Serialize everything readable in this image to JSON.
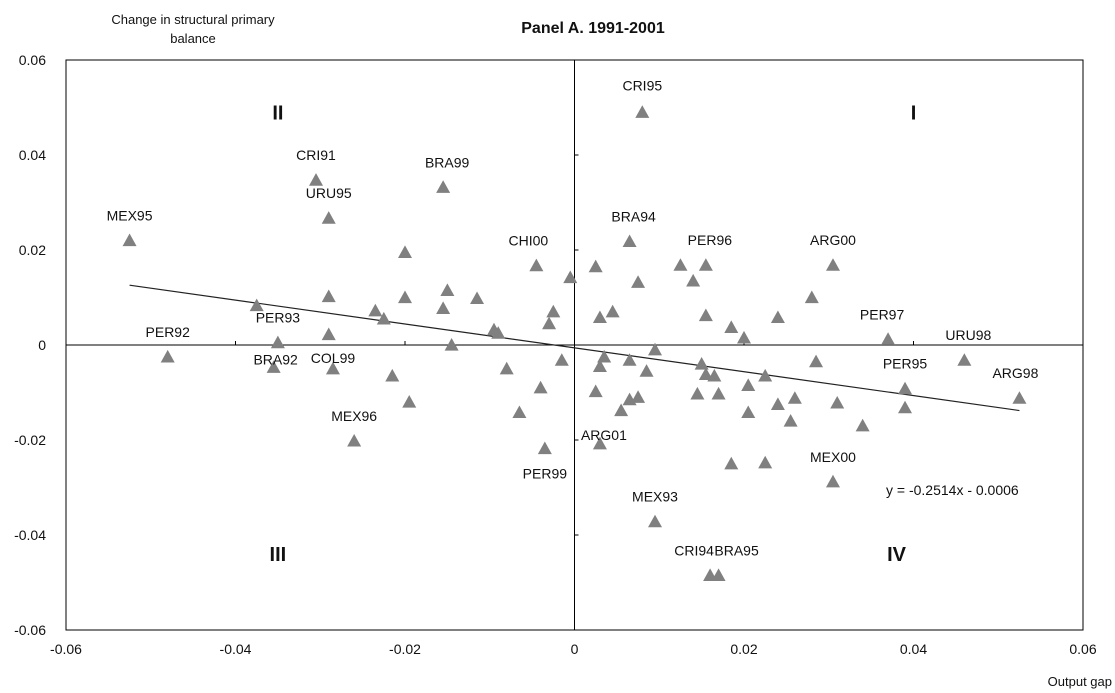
{
  "chart_data": {
    "type": "scatter",
    "title": "Panel A. 1991-2001",
    "xlabel": "Output gap",
    "ylabel": [
      "Change in structural primary",
      "balance"
    ],
    "xlim": [
      -0.06,
      0.06
    ],
    "ylim": [
      -0.06,
      0.06
    ],
    "x_ticks": [
      "-0.06",
      "-0.04",
      "-0.02",
      "0",
      "0.02",
      "0.04",
      "0.06"
    ],
    "y_ticks": [
      "-0.06",
      "-0.04",
      "-0.02",
      "0",
      "0.02",
      "0.04",
      "0.06"
    ],
    "grid": false,
    "marker": "triangle",
    "marker_color": "#808080",
    "trendline": {
      "equation": "y = -0.2514x - 0.0006",
      "slope": -0.2514,
      "intercept": -0.0006,
      "x_range": [
        -0.0525,
        0.0525
      ]
    },
    "quadrant_labels": [
      {
        "text": "I",
        "x": 0.04,
        "y": 0.049
      },
      {
        "text": "II",
        "x": -0.035,
        "y": 0.049
      },
      {
        "text": "III",
        "x": -0.035,
        "y": -0.044
      },
      {
        "text": "IV",
        "x": 0.038,
        "y": -0.044
      }
    ],
    "labeled_points": [
      {
        "label": "CRI95",
        "x": 0.008,
        "y": 0.049,
        "dx": 0,
        "dy": -22
      },
      {
        "label": "CRI91",
        "x": -0.0305,
        "y": 0.0347,
        "dx": 0,
        "dy": -20
      },
      {
        "label": "BRA99",
        "x": -0.0155,
        "y": 0.0332,
        "dx": 4,
        "dy": -20
      },
      {
        "label": "URU95",
        "x": -0.029,
        "y": 0.0267,
        "dx": 0,
        "dy": -20
      },
      {
        "label": "MEX95",
        "x": -0.0525,
        "y": 0.022,
        "dx": 0,
        "dy": -20
      },
      {
        "label": "BRA94",
        "x": 0.0065,
        "y": 0.0218,
        "dx": 4,
        "dy": -20
      },
      {
        "label": "CHI00",
        "x": -0.0045,
        "y": 0.0167,
        "dx": -8,
        "dy": -20
      },
      {
        "label": "PER96",
        "x": 0.0155,
        "y": 0.0168,
        "dx": 4,
        "dy": -20
      },
      {
        "label": "ARG00",
        "x": 0.0305,
        "y": 0.0168,
        "dx": 0,
        "dy": -20
      },
      {
        "label": "PER97",
        "x": 0.037,
        "y": 0.0012,
        "dx": -6,
        "dy": -20
      },
      {
        "label": "URU98",
        "x": 0.046,
        "y": -0.0032,
        "dx": 4,
        "dy": -20
      },
      {
        "label": "PER92",
        "x": -0.048,
        "y": -0.0025,
        "dx": 0,
        "dy": -20
      },
      {
        "label": "PER93",
        "x": -0.035,
        "y": 0.0005,
        "dx": 0,
        "dy": -20
      },
      {
        "label": "BRA92",
        "x": -0.0355,
        "y": -0.0047,
        "dx": 2,
        "dy": -3
      },
      {
        "label": "COL99",
        "x": -0.0285,
        "y": -0.005,
        "dx": 0,
        "dy": -6
      },
      {
        "label": "PER95",
        "x": 0.039,
        "y": -0.0092,
        "dx": 0,
        "dy": -20
      },
      {
        "label": "ARG98",
        "x": 0.0525,
        "y": -0.0112,
        "dx": -4,
        "dy": -20
      },
      {
        "label": "MEX96",
        "x": -0.026,
        "y": -0.0202,
        "dx": 0,
        "dy": -20
      },
      {
        "label": "ARG01",
        "x": 0.003,
        "y": -0.0208,
        "dx": 4,
        "dy": -4
      },
      {
        "label": "PER99",
        "x": -0.0035,
        "y": -0.0218,
        "dx": 0,
        "dy": 30
      },
      {
        "label": "MEX00",
        "x": 0.0305,
        "y": -0.0288,
        "dx": 0,
        "dy": -20
      },
      {
        "label": "MEX93",
        "x": 0.0095,
        "y": -0.0372,
        "dx": 0,
        "dy": -20
      },
      {
        "label": "CRI94",
        "x": 0.016,
        "y": -0.0485,
        "dx": -16,
        "dy": -20
      },
      {
        "label": "BRA95",
        "x": 0.017,
        "y": -0.0485,
        "dx": 18,
        "dy": -20
      }
    ],
    "other_points": [
      [
        -0.02,
        0.0195
      ],
      [
        -0.015,
        0.0115
      ],
      [
        -0.0155,
        0.0077
      ],
      [
        -0.0115,
        0.0098
      ],
      [
        -0.02,
        0.01
      ],
      [
        -0.029,
        0.0102
      ],
      [
        -0.0375,
        0.0083
      ],
      [
        -0.0235,
        0.0072
      ],
      [
        -0.0225,
        0.0055
      ],
      [
        -0.0095,
        0.0032
      ],
      [
        -0.029,
        0.0022
      ],
      [
        -0.0145,
        0
      ],
      [
        -0.009,
        0.0025
      ],
      [
        -0.0025,
        0.007
      ],
      [
        -0.003,
        0.0045
      ],
      [
        -0.0005,
        0.0142
      ],
      [
        -0.0215,
        -0.0065
      ],
      [
        -0.0195,
        -0.012
      ],
      [
        -0.008,
        -0.005
      ],
      [
        -0.004,
        -0.009
      ],
      [
        -0.0065,
        -0.0142
      ],
      [
        -0.0015,
        -0.0032
      ],
      [
        0.0025,
        0.0165
      ],
      [
        0.0075,
        0.0132
      ],
      [
        0.003,
        0.0058
      ],
      [
        0.0045,
        0.007
      ],
      [
        0.0125,
        0.0168
      ],
      [
        0.014,
        0.0135
      ],
      [
        0.0155,
        0.0062
      ],
      [
        0.0185,
        0.0037
      ],
      [
        0.02,
        0.0015
      ],
      [
        0.024,
        0.0058
      ],
      [
        0.028,
        0.01
      ],
      [
        0.0095,
        -0.001
      ],
      [
        0.0035,
        -0.0025
      ],
      [
        0.003,
        -0.0045
      ],
      [
        0.0025,
        -0.0098
      ],
      [
        0.0065,
        -0.0032
      ],
      [
        0.0085,
        -0.0055
      ],
      [
        0.0065,
        -0.0115
      ],
      [
        0.0075,
        -0.011
      ],
      [
        0.0055,
        -0.0138
      ],
      [
        0.015,
        -0.004
      ],
      [
        0.0155,
        -0.0062
      ],
      [
        0.0165,
        -0.0065
      ],
      [
        0.0145,
        -0.0103
      ],
      [
        0.017,
        -0.0103
      ],
      [
        0.0205,
        -0.0085
      ],
      [
        0.0225,
        -0.0065
      ],
      [
        0.0205,
        -0.0142
      ],
      [
        0.024,
        -0.0125
      ],
      [
        0.0255,
        -0.016
      ],
      [
        0.026,
        -0.0112
      ],
      [
        0.0285,
        -0.0035
      ],
      [
        0.031,
        -0.0122
      ],
      [
        0.034,
        -0.017
      ],
      [
        0.039,
        -0.0132
      ],
      [
        0.0185,
        -0.025
      ],
      [
        0.0225,
        -0.0248
      ]
    ]
  }
}
